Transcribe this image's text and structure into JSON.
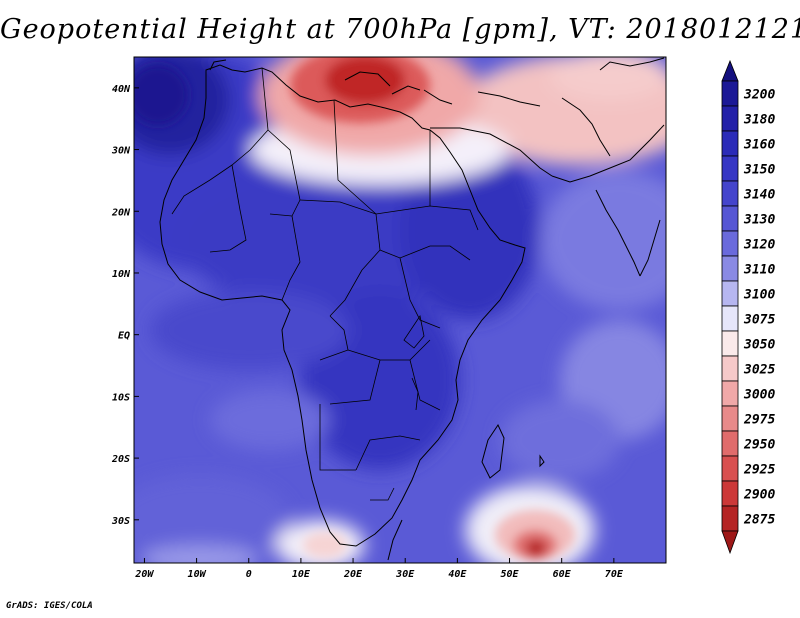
{
  "title": "Geopotential Height at 700hPa [gpm], VT: 2018012121",
  "credit": "GrADS: IGES/COLA",
  "map": {
    "region": "Africa and Western Indian Ocean",
    "extent": {
      "lon": [
        -22,
        80
      ],
      "lat": [
        -37,
        45
      ]
    },
    "lon_ticks": [
      {
        "lon": -20,
        "label": "20W"
      },
      {
        "lon": -10,
        "label": "10W"
      },
      {
        "lon": 0,
        "label": "0"
      },
      {
        "lon": 10,
        "label": "10E"
      },
      {
        "lon": 20,
        "label": "20E"
      },
      {
        "lon": 30,
        "label": "30E"
      },
      {
        "lon": 40,
        "label": "40E"
      },
      {
        "lon": 50,
        "label": "50E"
      },
      {
        "lon": 60,
        "label": "60E"
      },
      {
        "lon": 70,
        "label": "70E"
      }
    ],
    "lat_ticks": [
      {
        "lat": 40,
        "label": "40N"
      },
      {
        "lat": 30,
        "label": "30N"
      },
      {
        "lat": 20,
        "label": "20N"
      },
      {
        "lat": 10,
        "label": "10N"
      },
      {
        "lat": 0,
        "label": "EQ"
      },
      {
        "lat": -10,
        "label": "10S"
      },
      {
        "lat": -20,
        "label": "20S"
      },
      {
        "lat": -30,
        "label": "30S"
      }
    ]
  },
  "colorbar": {
    "levels": [
      {
        "label": "3200",
        "color": "#1b1896"
      },
      {
        "label": "3180",
        "color": "#2320a8"
      },
      {
        "label": "3160",
        "color": "#2b2bb8"
      },
      {
        "label": "3150",
        "color": "#3636c4"
      },
      {
        "label": "3140",
        "color": "#4444cc"
      },
      {
        "label": "3130",
        "color": "#5656d4"
      },
      {
        "label": "3120",
        "color": "#6a6adc"
      },
      {
        "label": "3110",
        "color": "#8a8ae4"
      },
      {
        "label": "3100",
        "color": "#b6b6f0"
      },
      {
        "label": "3075",
        "color": "#e6e6fa"
      },
      {
        "label": "3050",
        "color": "#faeaea"
      },
      {
        "label": "3025",
        "color": "#f6c9c9"
      },
      {
        "label": "3000",
        "color": "#f0a8a8"
      },
      {
        "label": "2975",
        "color": "#e88a8a"
      },
      {
        "label": "2950",
        "color": "#e06c6c"
      },
      {
        "label": "2925",
        "color": "#d85050"
      },
      {
        "label": "2900",
        "color": "#cc3838"
      },
      {
        "label": "2875",
        "color": "#b52424"
      }
    ],
    "top_cap_color": "#14107e",
    "bottom_cap_color": "#9e1818"
  },
  "features": {
    "lows": [
      {
        "name": "Eastern Mediterranean trough",
        "lon": 25,
        "lat": 43,
        "value": 2875
      },
      {
        "name": "Southern Indian Ocean low",
        "lon": 55,
        "lat": -35,
        "value": 2875
      }
    ],
    "highs": [
      {
        "name": "Atlantic high off Iberia",
        "lon": -18,
        "lat": 41,
        "value": 3180
      }
    ]
  }
}
